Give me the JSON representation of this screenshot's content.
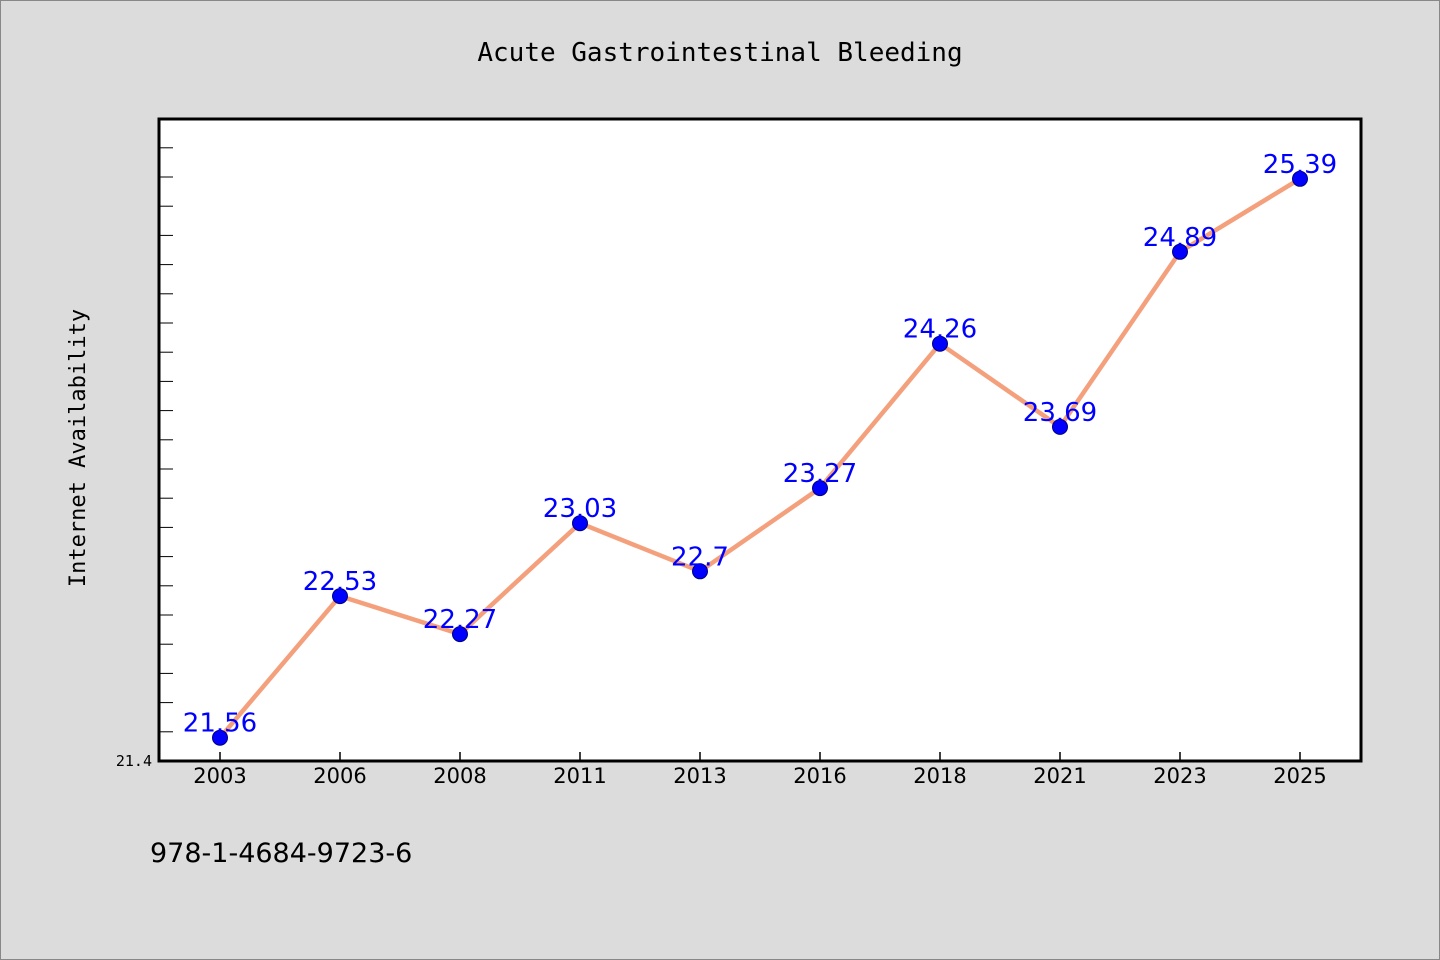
{
  "chart_data": {
    "type": "line",
    "title": "Acute Gastrointestinal Bleeding",
    "xlabel": "",
    "ylabel": "Internet Availability",
    "categories": [
      "2003",
      "2006",
      "2008",
      "2011",
      "2013",
      "2016",
      "2018",
      "2021",
      "2023",
      "2025"
    ],
    "series": [
      {
        "values": [
          21.56,
          22.53,
          22.27,
          23.03,
          22.7,
          23.27,
          24.26,
          23.69,
          24.89,
          25.39
        ],
        "data_labels": [
          "21.56",
          "22.53",
          "22.27",
          "23.03",
          "22.7",
          "23.27",
          "24.26",
          "23.69",
          "24.89",
          "25.39"
        ]
      }
    ],
    "ylim": [
      21.4,
      25.8
    ],
    "y_tick_labels": [
      "21.4"
    ],
    "grid": false,
    "legend": "none",
    "colors": {
      "line": "#f4a07c",
      "marker": "#0000ff",
      "label": "#0000ff",
      "background": "#dcdcdc",
      "plot_background": "#ffffff"
    }
  },
  "footer_text": "978-1-4684-9723-6"
}
